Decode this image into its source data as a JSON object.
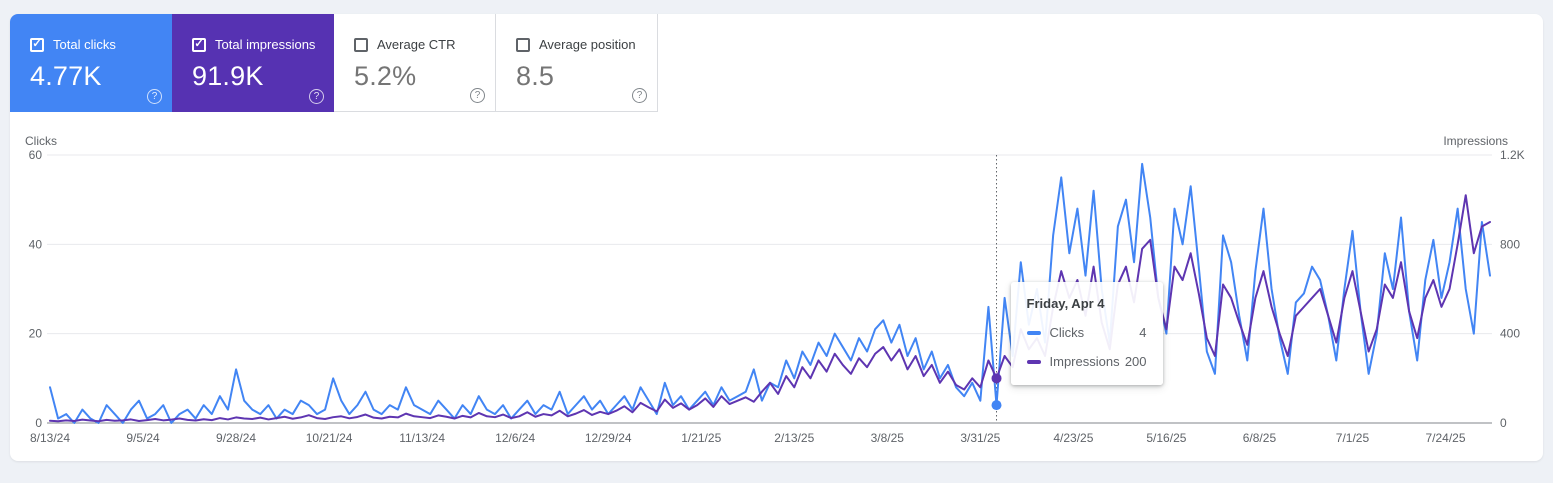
{
  "page": {
    "background": "#eef1f6",
    "panel_background": "#ffffff"
  },
  "icons": {
    "check": "✓",
    "help": "?"
  },
  "metric_cards": [
    {
      "label": "Total clicks",
      "value": "4.77K",
      "selected": true,
      "color": "#4285f4"
    },
    {
      "label": "Total impressions",
      "value": "91.9K",
      "selected": true,
      "color": "#5632b2"
    },
    {
      "label": "Average CTR",
      "value": "5.2%",
      "selected": false,
      "color": "#ffffff"
    },
    {
      "label": "Average position",
      "value": "8.5",
      "selected": false,
      "color": "#ffffff"
    }
  ],
  "tooltip": {
    "title": "Friday, Apr 4",
    "rows": [
      {
        "label": "Clicks",
        "value": "4",
        "color": "#4285f4"
      },
      {
        "label": "Impressions",
        "value": "200",
        "color": "#5e35b1"
      }
    ]
  },
  "chart_data": {
    "type": "line",
    "grid": true,
    "step_days": 2,
    "domain_days": [
      0,
      356
    ],
    "left_axis": {
      "title": "Clicks",
      "max": 60,
      "ticks": [
        {
          "value": 60,
          "label": "60"
        },
        {
          "value": 40,
          "label": "40"
        },
        {
          "value": 20,
          "label": "20"
        },
        {
          "value": 0,
          "label": "0"
        }
      ]
    },
    "right_axis": {
      "title": "Impressions",
      "max": 1200,
      "ticks": [
        {
          "value": 1200,
          "label": "1.2K"
        },
        {
          "value": 800,
          "label": "800"
        },
        {
          "value": 400,
          "label": "400"
        },
        {
          "value": 0,
          "label": "0"
        }
      ]
    },
    "x_ticks": [
      {
        "day": 0,
        "label": "8/13/24"
      },
      {
        "day": 23,
        "label": "9/5/24"
      },
      {
        "day": 46,
        "label": "9/28/24"
      },
      {
        "day": 69,
        "label": "10/21/24"
      },
      {
        "day": 92,
        "label": "11/13/24"
      },
      {
        "day": 115,
        "label": "12/6/24"
      },
      {
        "day": 138,
        "label": "12/29/24"
      },
      {
        "day": 161,
        "label": "1/21/25"
      },
      {
        "day": 184,
        "label": "2/13/25"
      },
      {
        "day": 207,
        "label": "3/8/25"
      },
      {
        "day": 230,
        "label": "3/31/25"
      },
      {
        "day": 253,
        "label": "4/23/25"
      },
      {
        "day": 276,
        "label": "5/16/25"
      },
      {
        "day": 299,
        "label": "6/8/25"
      },
      {
        "day": 322,
        "label": "7/1/25"
      },
      {
        "day": 345,
        "label": "7/24/25"
      }
    ],
    "highlight": {
      "index": 117,
      "date_label": "Friday, Apr 4",
      "clicks": 4,
      "impressions": 200
    },
    "series": [
      {
        "name": "Clicks",
        "axis": "left",
        "color": "#4285f4",
        "values": [
          8,
          1,
          2,
          0,
          3,
          1,
          0,
          4,
          2,
          0,
          3,
          5,
          1,
          2,
          4,
          0,
          2,
          3,
          1,
          4,
          2,
          6,
          3,
          12,
          5,
          3,
          2,
          4,
          1,
          3,
          2,
          5,
          4,
          2,
          3,
          10,
          5,
          2,
          4,
          7,
          3,
          2,
          4,
          3,
          8,
          4,
          3,
          2,
          5,
          3,
          1,
          4,
          2,
          6,
          3,
          2,
          4,
          1,
          3,
          5,
          2,
          4,
          3,
          7,
          2,
          4,
          6,
          3,
          5,
          2,
          4,
          6,
          3,
          8,
          5,
          2,
          9,
          4,
          6,
          3,
          5,
          7,
          4,
          8,
          5,
          6,
          7,
          12,
          5,
          9,
          8,
          14,
          10,
          16,
          13,
          18,
          15,
          20,
          17,
          14,
          19,
          16,
          21,
          23,
          18,
          22,
          15,
          19,
          12,
          16,
          10,
          13,
          8,
          6,
          9,
          5,
          26,
          4,
          28,
          15,
          36,
          22,
          30,
          18,
          42,
          55,
          38,
          48,
          33,
          52,
          30,
          18,
          44,
          50,
          36,
          58,
          46,
          28,
          20,
          48,
          40,
          53,
          35,
          16,
          11,
          42,
          36,
          24,
          14,
          34,
          48,
          30,
          19,
          11,
          27,
          29,
          35,
          32,
          24,
          14,
          30,
          43,
          25,
          11,
          20,
          38,
          30,
          46,
          25,
          14,
          32,
          41,
          28,
          36,
          48,
          30,
          20,
          45,
          33
        ]
      },
      {
        "name": "Impressions",
        "axis": "right",
        "color": "#5e35b1",
        "values": [
          10,
          8,
          12,
          9,
          15,
          11,
          8,
          14,
          10,
          12,
          16,
          9,
          13,
          18,
          12,
          15,
          20,
          14,
          11,
          17,
          13,
          22,
          16,
          25,
          20,
          18,
          24,
          16,
          22,
          28,
          19,
          25,
          35,
          22,
          18,
          26,
          30,
          21,
          27,
          38,
          24,
          20,
          28,
          25,
          42,
          30,
          26,
          22,
          34,
          28,
          20,
          32,
          25,
          45,
          30,
          26,
          38,
          22,
          30,
          48,
          28,
          40,
          34,
          55,
          30,
          42,
          58,
          36,
          50,
          40,
          55,
          75,
          48,
          90,
          70,
          52,
          105,
          68,
          88,
          60,
          80,
          110,
          72,
          120,
          85,
          100,
          115,
          95,
          140,
          180,
          130,
          210,
          160,
          250,
          200,
          280,
          230,
          310,
          260,
          220,
          290,
          250,
          310,
          340,
          280,
          330,
          240,
          300,
          210,
          260,
          180,
          230,
          170,
          150,
          200,
          160,
          280,
          200,
          300,
          250,
          420,
          330,
          380,
          300,
          520,
          680,
          560,
          640,
          480,
          700,
          450,
          330,
          620,
          700,
          540,
          780,
          820,
          560,
          420,
          700,
          640,
          760,
          580,
          380,
          300,
          620,
          560,
          450,
          350,
          560,
          680,
          520,
          400,
          300,
          480,
          520,
          560,
          600,
          480,
          360,
          560,
          680,
          500,
          320,
          420,
          620,
          560,
          720,
          500,
          380,
          560,
          640,
          520,
          600,
          800,
          1020,
          760,
          880,
          900
        ]
      }
    ]
  }
}
